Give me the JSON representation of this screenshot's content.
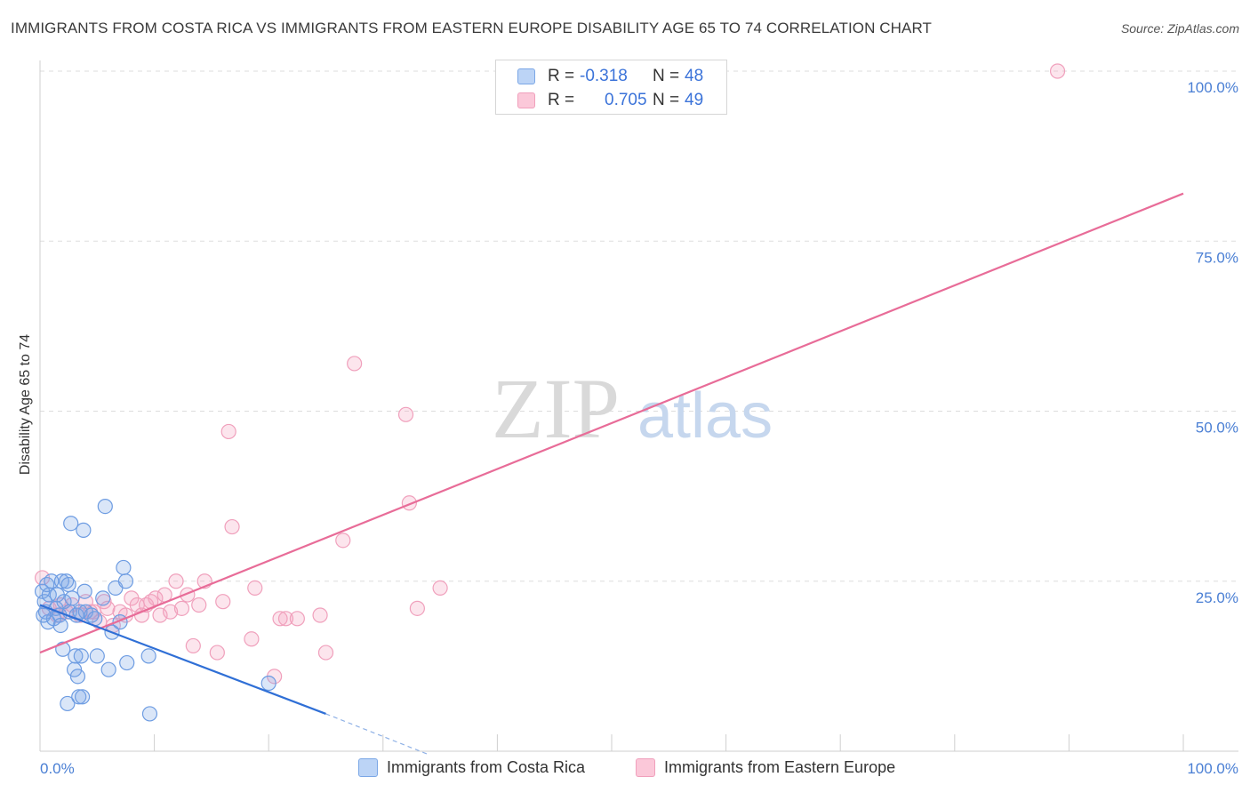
{
  "header": {
    "title": "IMMIGRANTS FROM COSTA RICA VS IMMIGRANTS FROM EASTERN EUROPE DISABILITY AGE 65 TO 74 CORRELATION CHART",
    "source": "Source: ZipAtlas.com"
  },
  "legend": {
    "r_label": "R =",
    "n_label": "N =",
    "series": [
      {
        "r": "-0.318",
        "n": "48"
      },
      {
        "r": "0.705",
        "n": "49"
      }
    ]
  },
  "watermark": {
    "zip": "ZIP",
    "atlas": "atlas"
  },
  "chart_data": {
    "type": "scatter",
    "title": "IMMIGRANTS FROM COSTA RICA VS IMMIGRANTS FROM EASTERN EUROPE DISABILITY AGE 65 TO 74 CORRELATION CHART",
    "xlabel": "",
    "ylabel": "Disability Age 65 to 74",
    "xlim": [
      0,
      100
    ],
    "ylim": [
      0,
      100
    ],
    "x_tick_labels": [
      "0.0%",
      "100.0%"
    ],
    "y_ticks": [
      25,
      50,
      75,
      100
    ],
    "y_tick_labels": [
      "25.0%",
      "50.0%",
      "75.0%",
      "100.0%"
    ],
    "grid": true,
    "legend_position": "top-center",
    "colors": {
      "Immigrants from Costa Rica": "#7ba7e6",
      "Immigrants from Eastern Europe": "#f0a0bc",
      "blue_line": "#2f6fd6",
      "pink_line": "#e86c98"
    },
    "series": [
      {
        "name": "Immigrants from Costa Rica",
        "points": [
          [
            0.2,
            23.5
          ],
          [
            0.4,
            22
          ],
          [
            0.5,
            20.5
          ],
          [
            0.6,
            24.5
          ],
          [
            0.7,
            19
          ],
          [
            0.8,
            23
          ],
          [
            1,
            25
          ],
          [
            1.2,
            19.5
          ],
          [
            1.4,
            21
          ],
          [
            1.5,
            23
          ],
          [
            1.7,
            20
          ],
          [
            1.8,
            18.5
          ],
          [
            1.9,
            25
          ],
          [
            2,
            15
          ],
          [
            2.1,
            22
          ],
          [
            2.3,
            25
          ],
          [
            2.4,
            7
          ],
          [
            2.5,
            24.5
          ],
          [
            2.6,
            20.5
          ],
          [
            2.7,
            33.5
          ],
          [
            2.8,
            22.5
          ],
          [
            3,
            12
          ],
          [
            3.1,
            14
          ],
          [
            3.2,
            20
          ],
          [
            3.3,
            11
          ],
          [
            3.4,
            8
          ],
          [
            3.5,
            20.5
          ],
          [
            3.6,
            14
          ],
          [
            3.7,
            8
          ],
          [
            3.8,
            32.5
          ],
          [
            3.9,
            23.5
          ],
          [
            4,
            20.5
          ],
          [
            4.5,
            20
          ],
          [
            4.8,
            19.5
          ],
          [
            5,
            14
          ],
          [
            5.5,
            22.5
          ],
          [
            5.7,
            36
          ],
          [
            6,
            12
          ],
          [
            6.3,
            17.5
          ],
          [
            6.6,
            24
          ],
          [
            7,
            19
          ],
          [
            7.3,
            27
          ],
          [
            7.5,
            25
          ],
          [
            7.6,
            13
          ],
          [
            9.5,
            14
          ],
          [
            9.6,
            5.5
          ],
          [
            20,
            10
          ],
          [
            0.3,
            20
          ]
        ],
        "trend": {
          "x": [
            0,
            25
          ],
          "y": [
            21.5,
            5.5
          ]
        },
        "trend_extension": {
          "x": [
            25,
            34
          ],
          "y": [
            5.5,
            -0.5
          ]
        }
      },
      {
        "name": "Immigrants from Eastern Europe",
        "points": [
          [
            0.2,
            25.5
          ],
          [
            0.8,
            21
          ],
          [
            1.5,
            20
          ],
          [
            1.8,
            21.5
          ],
          [
            2.3,
            20.5
          ],
          [
            2.8,
            21.5
          ],
          [
            3.5,
            20
          ],
          [
            4,
            22
          ],
          [
            4.4,
            20.5
          ],
          [
            4.7,
            20.5
          ],
          [
            5.2,
            19
          ],
          [
            5.6,
            22
          ],
          [
            5.9,
            21
          ],
          [
            6.4,
            18.5
          ],
          [
            7,
            20.5
          ],
          [
            7.5,
            20
          ],
          [
            8,
            22.5
          ],
          [
            8.5,
            21.5
          ],
          [
            8.9,
            20
          ],
          [
            9.3,
            21.5
          ],
          [
            9.7,
            22
          ],
          [
            10.1,
            22.5
          ],
          [
            10.5,
            20
          ],
          [
            10.9,
            23
          ],
          [
            11.4,
            20.5
          ],
          [
            11.9,
            25
          ],
          [
            12.4,
            21
          ],
          [
            12.9,
            23
          ],
          [
            13.4,
            15.5
          ],
          [
            13.9,
            21.5
          ],
          [
            14.4,
            25
          ],
          [
            15.5,
            14.5
          ],
          [
            16,
            22
          ],
          [
            16.5,
            47
          ],
          [
            16.8,
            33
          ],
          [
            18.5,
            16.5
          ],
          [
            18.8,
            24
          ],
          [
            20.5,
            11
          ],
          [
            21,
            19.5
          ],
          [
            21.5,
            19.5
          ],
          [
            22.5,
            19.5
          ],
          [
            24.5,
            20
          ],
          [
            25,
            14.5
          ],
          [
            26.5,
            31
          ],
          [
            27.5,
            57
          ],
          [
            32,
            49.5
          ],
          [
            32.3,
            36.5
          ],
          [
            33,
            21
          ],
          [
            35,
            24
          ]
        ],
        "extra_points": [
          [
            89,
            100
          ]
        ],
        "trend": {
          "x": [
            0,
            100
          ],
          "y": [
            14.5,
            82
          ]
        }
      }
    ]
  },
  "bottom_legend": [
    {
      "label": "Immigrants from Costa Rica"
    },
    {
      "label": "Immigrants from Eastern Europe"
    }
  ]
}
